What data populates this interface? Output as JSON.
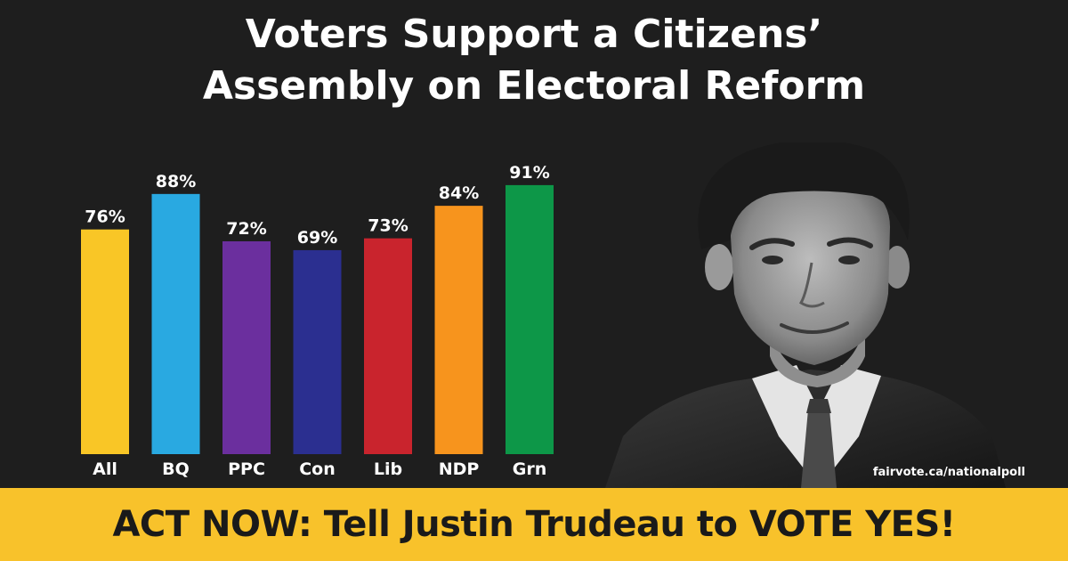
{
  "title_line1": "Voters Support a Citizens’",
  "title_line2": "Assembly on Electoral Reform",
  "chart_data": {
    "type": "bar",
    "categories": [
      "All",
      "BQ",
      "PPC",
      "Con",
      "Lib",
      "NDP",
      "Grn"
    ],
    "values": [
      76,
      88,
      72,
      69,
      73,
      84,
      91
    ],
    "value_labels": [
      "76%",
      "88%",
      "72%",
      "69%",
      "73%",
      "84%",
      "91%"
    ],
    "colors": [
      "#f9c626",
      "#29a9e1",
      "#6b2f9e",
      "#2b2f90",
      "#c9242d",
      "#f7941d",
      "#0d9748"
    ],
    "unit": "%",
    "ylim": [
      0,
      100
    ],
    "grid": false,
    "legend": "none",
    "title": "Voters Support a Citizens’ Assembly on Electoral Reform",
    "xlabel": "",
    "ylabel": ""
  },
  "photo_icon": "person-portrait-icon",
  "url": "fairvote.ca/nationalpoll",
  "cta": "ACT NOW: Tell Justin Trudeau to VOTE YES!",
  "colors": {
    "background": "#1e1e1e",
    "banner": "#f8c22b",
    "text": "#ffffff",
    "cta_text": "#1a1a1a"
  }
}
